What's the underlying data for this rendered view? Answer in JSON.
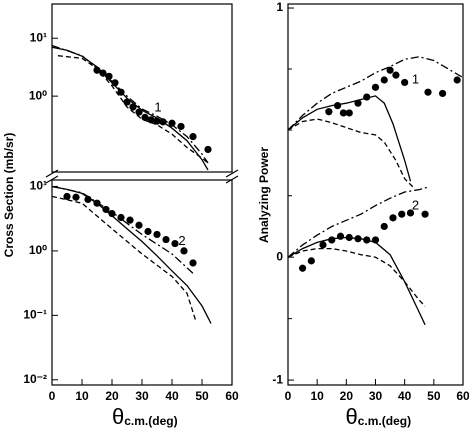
{
  "chart_data": [
    {
      "type": "scatter-lines",
      "log": true,
      "label": "1",
      "xlim": [
        0,
        60
      ],
      "ylim": [
        0.049,
        39
      ],
      "yticks": [
        {
          "value": 1,
          "label": "10⁰"
        },
        {
          "value": 10,
          "label": "10¹"
        }
      ],
      "series": [
        {
          "style": "points",
          "color": "#000000",
          "x": [
            15,
            17,
            19,
            21,
            23,
            25,
            27,
            29,
            31,
            33,
            35,
            37,
            40,
            43,
            47,
            52
          ],
          "values": [
            2.8,
            2.5,
            2.2,
            1.7,
            1.17,
            0.79,
            0.65,
            0.53,
            0.43,
            0.39,
            0.37,
            0.36,
            0.34,
            0.3,
            0.2,
            0.12
          ]
        },
        {
          "style": "solid",
          "color": "#000000",
          "x": [
            0,
            5,
            10,
            15,
            20,
            25,
            30,
            35,
            40,
            45,
            50,
            52
          ],
          "values": [
            7,
            6.2,
            4.9,
            3.2,
            1.7,
            0.92,
            0.57,
            0.42,
            0.28,
            0.17,
            0.08,
            0.053
          ]
        },
        {
          "style": "dashdot",
          "color": "#000000",
          "x": [
            0,
            10,
            20,
            25,
            30,
            35,
            40,
            45,
            50,
            52
          ],
          "values": [
            7.5,
            5,
            1.8,
            1.0,
            0.6,
            0.45,
            0.32,
            0.2,
            0.1,
            0.07
          ]
        },
        {
          "style": "dashed",
          "color": "#000000",
          "x": [
            2,
            10,
            15,
            20,
            25,
            30,
            35,
            40,
            45,
            50,
            52
          ],
          "values": [
            5,
            4.5,
            3,
            1.5,
            0.65,
            0.4,
            0.32,
            0.22,
            0.13,
            0.085,
            0.07
          ]
        }
      ]
    },
    {
      "type": "scatter-lines",
      "log": true,
      "label": "2",
      "xlim": [
        0,
        60
      ],
      "ylim": [
        0.0083,
        12.6
      ],
      "ylabel": "Cross Section (mb/sr)",
      "xlabel": "θ",
      "xlabel_sub": "c.m.(deg)",
      "xticks": [
        0,
        10,
        20,
        30,
        40,
        50,
        60
      ],
      "yticks": [
        {
          "value": 0.01,
          "label": "10⁻²"
        },
        {
          "value": 0.1,
          "label": "10⁻¹"
        },
        {
          "value": 1,
          "label": "10⁰"
        },
        {
          "value": 10,
          "label": "10¹"
        }
      ],
      "series": [
        {
          "style": "points",
          "color": "#000000",
          "x": [
            5,
            8,
            12,
            15,
            18,
            20,
            23,
            26,
            29,
            32,
            35,
            38,
            41,
            44,
            47
          ],
          "values": [
            7,
            6.8,
            6.3,
            5.5,
            4.4,
            3.8,
            3.3,
            3.0,
            2.5,
            2.0,
            1.8,
            1.5,
            1.3,
            1.0,
            0.65
          ]
        },
        {
          "style": "solid",
          "color": "#000000",
          "x": [
            0,
            5,
            10,
            15,
            20,
            25,
            30,
            35,
            40,
            45,
            50,
            53
          ],
          "values": [
            10,
            9,
            7.8,
            5.5,
            3.5,
            2.2,
            1.4,
            0.84,
            0.49,
            0.29,
            0.14,
            0.075
          ]
        },
        {
          "style": "dashdot",
          "color": "#000000",
          "x": [
            0,
            10,
            20,
            30,
            40,
            47
          ],
          "values": [
            10,
            8,
            4,
            1.8,
            0.9,
            0.45
          ]
        },
        {
          "style": "dashed",
          "color": "#000000",
          "x": [
            0,
            10,
            20,
            30,
            40,
            45,
            48
          ],
          "values": [
            7,
            5.5,
            2.2,
            0.9,
            0.4,
            0.22,
            0.08
          ]
        }
      ]
    },
    {
      "type": "scatter-lines",
      "log": false,
      "label": "1",
      "xlim": [
        0,
        60
      ],
      "ylim": [
        -2.09,
        1.033
      ],
      "yticks": [
        1
      ],
      "yminor": [
        0.5,
        0
      ],
      "series": [
        {
          "style": "points",
          "color": "#000000",
          "x": [
            14,
            17,
            19,
            21,
            24,
            27,
            30,
            33,
            35,
            37,
            40,
            48,
            53,
            58
          ],
          "values": [
            0.15,
            0.2,
            0.14,
            0.14,
            0.22,
            0.27,
            0.35,
            0.41,
            0.49,
            0.45,
            0.39,
            0.31,
            0.3,
            0.41
          ]
        },
        {
          "style": "solid",
          "color": "#000000",
          "x": [
            0,
            5,
            10,
            15,
            20,
            25,
            30,
            33,
            36,
            40,
            42
          ],
          "values": [
            0,
            0.1,
            0.17,
            0.2,
            0.22,
            0.25,
            0.28,
            0.22,
            0.05,
            -0.25,
            -0.42
          ]
        },
        {
          "style": "dashdot",
          "color": "#000000",
          "x": [
            0,
            5,
            10,
            15,
            20,
            25,
            30,
            35,
            40,
            45,
            50,
            55,
            60
          ],
          "values": [
            0,
            0.12,
            0.22,
            0.3,
            0.35,
            0.4,
            0.47,
            0.52,
            0.58,
            0.6,
            0.57,
            0.5,
            0.43
          ]
        },
        {
          "style": "dashed",
          "color": "#000000",
          "x": [
            0,
            5,
            10,
            15,
            20,
            25,
            30,
            33,
            37,
            40,
            43
          ],
          "values": [
            0,
            0.07,
            0.09,
            0.06,
            0.02,
            -0.02,
            -0.04,
            -0.1,
            -0.25,
            -0.4,
            -0.47
          ]
        }
      ]
    },
    {
      "type": "scatter-lines",
      "log": false,
      "label": "2",
      "xlim": [
        0,
        60
      ],
      "ylim": [
        -1.04,
        2.06
      ],
      "ylabel": "Analyzing Power",
      "xlabel": "θ",
      "xlabel_sub": "c.m.(deg)",
      "xticks": [
        0,
        10,
        20,
        30,
        40,
        50,
        60
      ],
      "yticks": [
        -1,
        0
      ],
      "yminor": [
        0.5,
        -0.5
      ],
      "series": [
        {
          "style": "points",
          "color": "#000000",
          "x": [
            5,
            8,
            12,
            15,
            18,
            21,
            24,
            27,
            30,
            33,
            36,
            39,
            42,
            47
          ],
          "values": [
            -0.09,
            -0.03,
            0.1,
            0.14,
            0.17,
            0.16,
            0.15,
            0.14,
            0.14,
            0.25,
            0.32,
            0.35,
            0.36,
            0.35
          ]
        },
        {
          "style": "solid",
          "color": "#000000",
          "x": [
            0,
            5,
            10,
            15,
            20,
            25,
            30,
            35,
            40,
            45,
            47
          ],
          "values": [
            0,
            0.07,
            0.12,
            0.15,
            0.16,
            0.15,
            0.12,
            0.02,
            -0.2,
            -0.45,
            -0.55
          ]
        },
        {
          "style": "dashdot",
          "color": "#000000",
          "x": [
            0,
            5,
            10,
            15,
            20,
            25,
            30,
            35,
            40,
            45,
            48
          ],
          "values": [
            0,
            0.1,
            0.18,
            0.25,
            0.3,
            0.35,
            0.42,
            0.48,
            0.53,
            0.55,
            0.57
          ]
        },
        {
          "style": "dashed",
          "color": "#000000",
          "x": [
            0,
            5,
            10,
            15,
            20,
            25,
            30,
            35,
            40,
            45,
            47
          ],
          "values": [
            0,
            0.05,
            0.07,
            0.07,
            0.05,
            0.02,
            0,
            -0.07,
            -0.2,
            -0.35,
            -0.4
          ]
        }
      ]
    }
  ]
}
